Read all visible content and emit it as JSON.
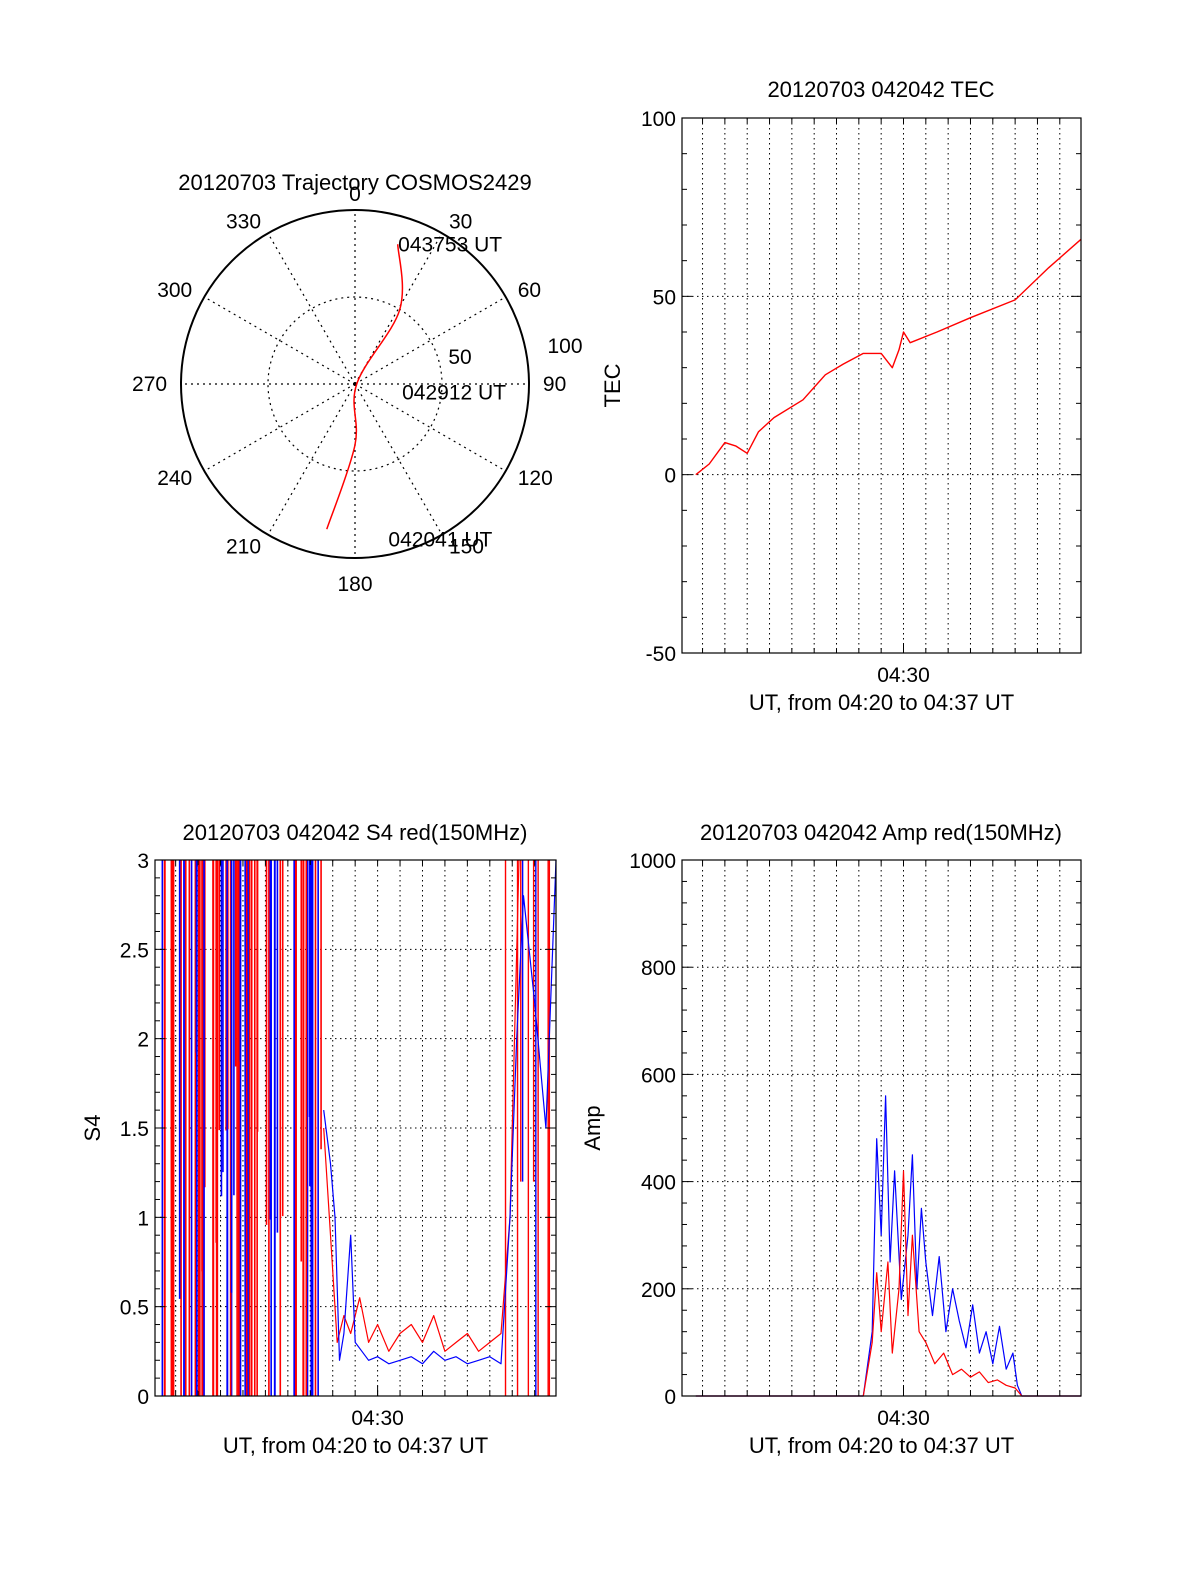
{
  "colors": {
    "red": "#ff0000",
    "blue": "#0000ff",
    "axis": "#000000",
    "grid": "#000000"
  },
  "chart_data": [
    {
      "id": "trajectory",
      "type": "polar",
      "title": "20120703 Trajectory COSMOS2429",
      "angle_labels": [
        "0",
        "30",
        "60",
        "90",
        "120",
        "150",
        "180",
        "210",
        "240",
        "270",
        "300",
        "330"
      ],
      "radius_labels": [
        "50",
        "100"
      ],
      "r_max": 100,
      "track": [
        {
          "az": 191,
          "r": 85
        },
        {
          "az": 180,
          "r": 35
        },
        {
          "az": 90,
          "r": 1
        },
        {
          "az": 31,
          "r": 50
        },
        {
          "az": 17,
          "r": 84
        }
      ],
      "annotations": [
        {
          "text": "043753 UT",
          "az": 20,
          "r": 86
        },
        {
          "text": "042912 UT",
          "az": 98,
          "r": 32
        },
        {
          "text": "042041 UT",
          "az": 165,
          "r": 92
        }
      ]
    },
    {
      "id": "tec",
      "type": "line",
      "title": "20120703 042042 TEC",
      "xlabel": "UT, from 04:20 to 04:37 UT",
      "ylabel": "TEC",
      "xtick_label": "04:30",
      "yticks": [
        "100",
        "50",
        "0",
        "-50"
      ],
      "ylim": [
        -50,
        100
      ],
      "xlim_minutes": [
        20.08,
        37.95
      ],
      "grid": true,
      "series": [
        {
          "color": "red",
          "x": [
            20.7,
            21.3,
            22.0,
            22.5,
            23.0,
            23.5,
            24.2,
            25.5,
            26.5,
            27.3,
            28.2,
            29.0,
            29.5,
            29.8,
            30.0,
            30.3,
            31.5,
            33.0,
            35.0,
            36.5,
            37.95
          ],
          "y": [
            0,
            3,
            9,
            8,
            6,
            12,
            16,
            21,
            28,
            31,
            34,
            34,
            30,
            35,
            40,
            37,
            40,
            44,
            49,
            58,
            66
          ]
        }
      ]
    },
    {
      "id": "s4",
      "type": "line",
      "title": "20120703 042042 S4 red(150MHz)",
      "xlabel": "UT, from 04:20 to 04:37 UT",
      "ylabel": "S4",
      "xtick_label": "04:30",
      "yticks": [
        "3",
        "2.5",
        "2",
        "1.5",
        "1",
        "0.5",
        "0"
      ],
      "ylim": [
        0,
        3
      ],
      "xlim_minutes": [
        20.08,
        37.95
      ],
      "grid": true,
      "series": [
        {
          "color": "red",
          "x": [
            27.6,
            27.9,
            28.2,
            28.5,
            28.8,
            29.2,
            29.6,
            30.0,
            30.5,
            31.0,
            31.5,
            32.0,
            32.5,
            33.0,
            33.5,
            34.0,
            34.5,
            35.0,
            35.5,
            35.9,
            36.1,
            36.3
          ],
          "y": [
            1.5,
            0.9,
            0.3,
            0.45,
            0.35,
            0.55,
            0.3,
            0.4,
            0.25,
            0.35,
            0.4,
            0.3,
            0.45,
            0.25,
            0.3,
            0.35,
            0.25,
            0.3,
            0.35,
            1.0,
            2.0,
            3.0
          ]
        },
        {
          "color": "blue",
          "x": [
            27.6,
            27.9,
            28.1,
            28.3,
            28.5,
            28.8,
            29.0,
            29.3,
            29.6,
            30.0,
            30.5,
            31.0,
            31.5,
            32.0,
            32.5,
            33.0,
            33.5,
            34.0,
            34.5,
            35.0,
            35.5,
            35.9,
            36.2,
            36.5,
            37.0,
            37.5,
            37.95
          ],
          "y": [
            1.6,
            1.3,
            1.0,
            0.2,
            0.35,
            0.9,
            0.3,
            0.25,
            0.2,
            0.22,
            0.18,
            0.2,
            0.22,
            0.18,
            0.25,
            0.2,
            0.22,
            0.18,
            0.2,
            0.22,
            0.18,
            1.0,
            2.0,
            2.8,
            2.2,
            1.5,
            3.0
          ]
        }
      ]
    },
    {
      "id": "amp",
      "type": "line",
      "title": "20120703 042042 Amp red(150MHz)",
      "xlabel": "UT, from 04:20 to 04:37 UT",
      "ylabel": "Amp",
      "xtick_label": "04:30",
      "yticks": [
        "1000",
        "800",
        "600",
        "400",
        "200",
        "0"
      ],
      "ylim": [
        0,
        1000
      ],
      "xlim_minutes": [
        20.08,
        37.95
      ],
      "grid": true,
      "series": [
        {
          "color": "blue",
          "x": [
            20.7,
            28.2,
            28.6,
            28.8,
            29.0,
            29.2,
            29.4,
            29.6,
            29.9,
            30.2,
            30.4,
            30.6,
            30.8,
            31.0,
            31.3,
            31.6,
            31.9,
            32.2,
            32.5,
            32.8,
            33.1,
            33.4,
            33.7,
            34.0,
            34.3,
            34.6,
            34.9,
            35.1,
            35.3,
            37.95
          ],
          "y": [
            0,
            0,
            120,
            480,
            300,
            560,
            250,
            420,
            180,
            300,
            450,
            200,
            350,
            250,
            150,
            260,
            120,
            200,
            140,
            90,
            170,
            80,
            120,
            60,
            130,
            50,
            80,
            20,
            0,
            0
          ]
        },
        {
          "color": "red",
          "x": [
            20.7,
            28.2,
            28.6,
            28.8,
            29.0,
            29.3,
            29.5,
            29.8,
            30.0,
            30.2,
            30.4,
            30.7,
            31.0,
            31.4,
            31.8,
            32.2,
            32.6,
            33.0,
            33.4,
            33.8,
            34.2,
            34.6,
            35.0,
            35.3,
            37.95
          ],
          "y": [
            0,
            0,
            100,
            230,
            120,
            250,
            80,
            200,
            420,
            150,
            300,
            120,
            100,
            60,
            80,
            40,
            50,
            35,
            45,
            25,
            30,
            20,
            15,
            0,
            0
          ]
        }
      ]
    }
  ]
}
